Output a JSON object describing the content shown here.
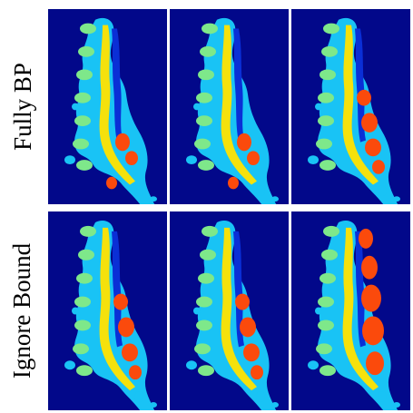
{
  "figure": {
    "row_labels": [
      "Fully BP",
      "Ignore Bound"
    ],
    "colors": {
      "background": "#02088a",
      "spine_tissue": "#19c3f5",
      "vertebra_body": "#7ee88a",
      "spinal_cord": "#f5e10c",
      "cord_shadow": "#0a2fd6",
      "orange_region": "#fb4a0c"
    },
    "panels": [
      {
        "row": 1,
        "col": 1,
        "orange_amount": 1
      },
      {
        "row": 1,
        "col": 2,
        "orange_amount": 1
      },
      {
        "row": 1,
        "col": 3,
        "orange_amount": 2
      },
      {
        "row": 2,
        "col": 1,
        "orange_amount": 2
      },
      {
        "row": 2,
        "col": 2,
        "orange_amount": 2
      },
      {
        "row": 2,
        "col": 3,
        "orange_amount": 3
      }
    ]
  }
}
